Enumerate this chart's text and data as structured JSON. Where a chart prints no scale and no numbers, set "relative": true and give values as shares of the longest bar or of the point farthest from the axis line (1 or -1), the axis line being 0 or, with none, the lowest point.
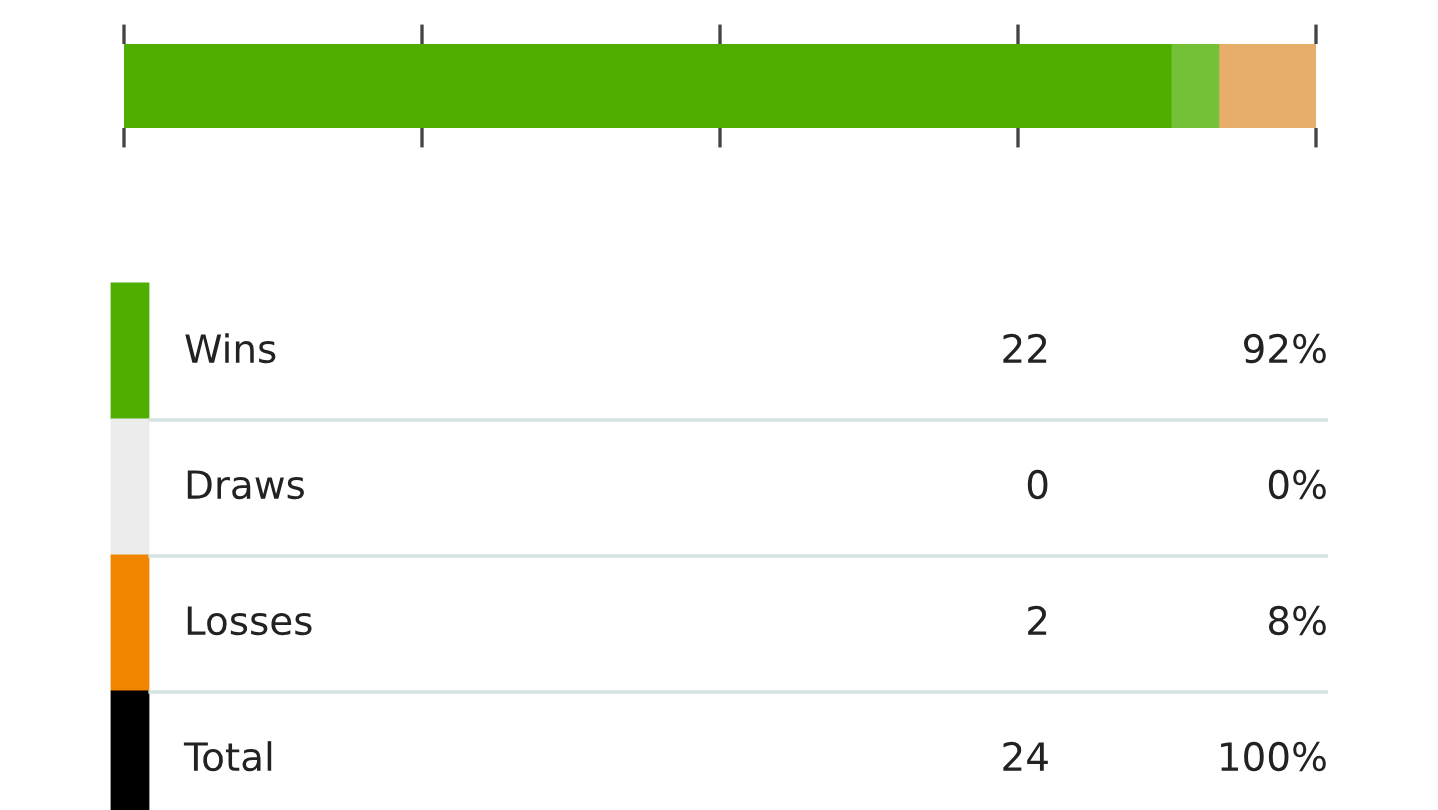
{
  "chart_data": [
    {
      "type": "bar",
      "orientation": "horizontal",
      "stacked": true,
      "relative": true,
      "categories": [
        null
      ],
      "series": [
        {
          "color": "#4fae00",
          "values": [
            0.88
          ]
        },
        {
          "color": "#74c037",
          "values": [
            0.04
          ]
        },
        {
          "color": "#e6ae6a",
          "values": [
            0.08
          ]
        }
      ],
      "grid": false
    },
    {
      "type": "other",
      "colors": [
        "#4fae00",
        "#ececec",
        "#f28500",
        "#000000"
      ],
      "annotations": [
        "Wins",
        "22",
        "92%",
        "Draws",
        "0",
        "0%",
        "Losses",
        "2",
        "8%",
        "Total",
        "24",
        "100%"
      ]
    }
  ]
}
